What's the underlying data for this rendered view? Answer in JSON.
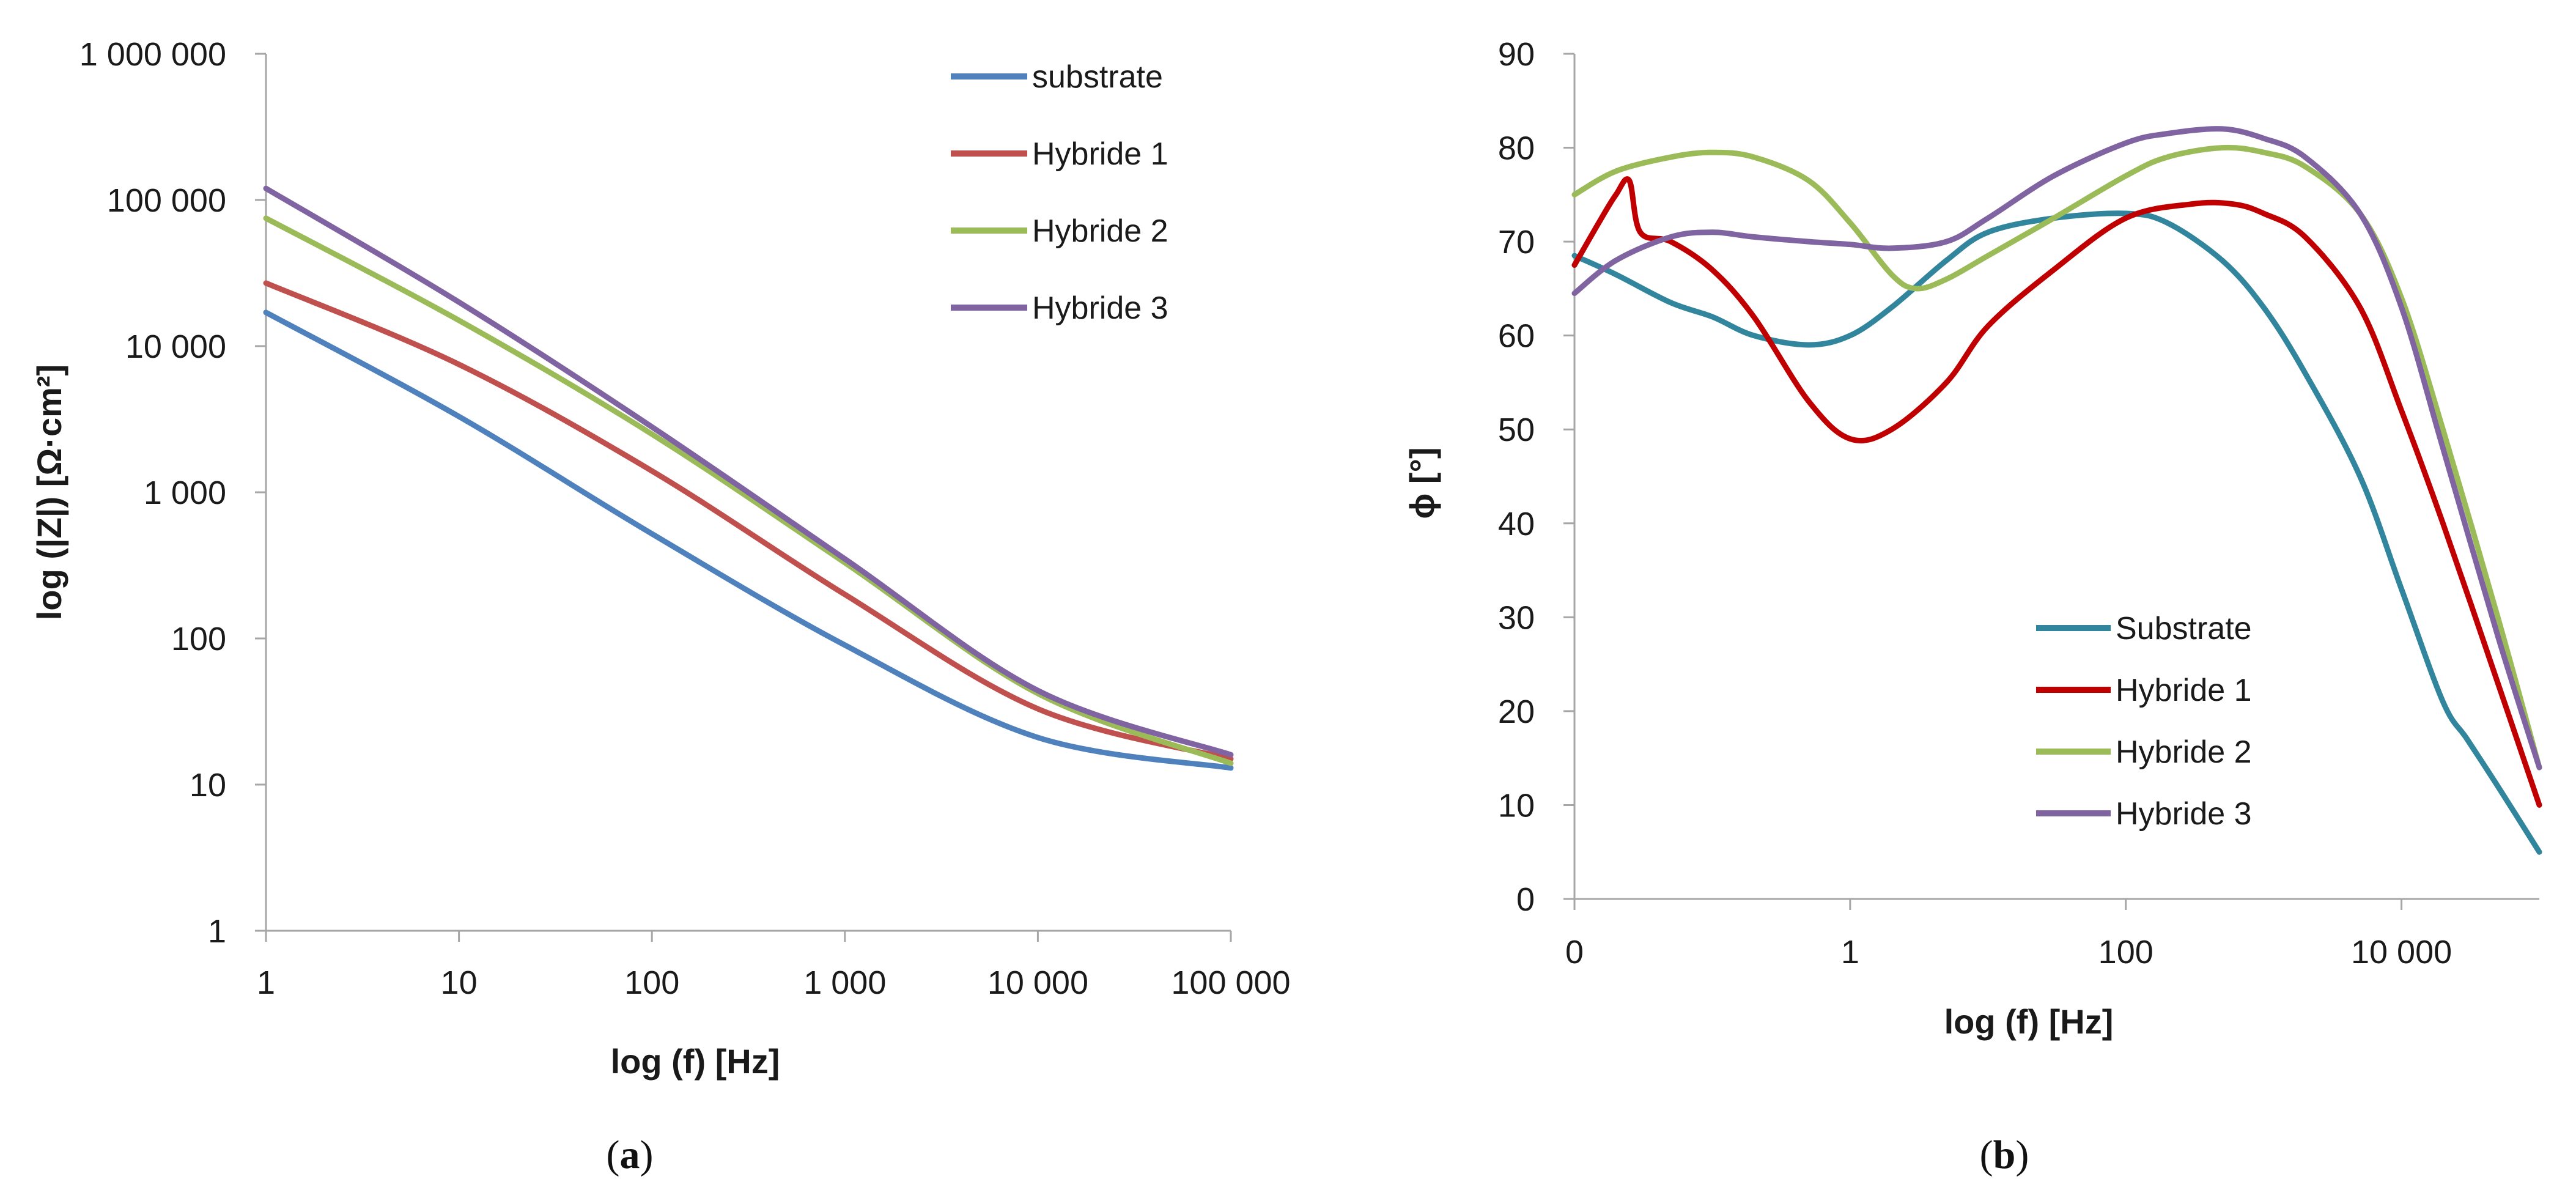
{
  "panels": [
    {
      "label_open": "(",
      "label_letter": "a",
      "label_close": ")"
    },
    {
      "label_open": "(",
      "label_letter": "b",
      "label_close": ")"
    }
  ],
  "chart_data": [
    {
      "type": "line",
      "panel": "a",
      "xlabel": "log (f) [Hz]",
      "ylabel": "log (|Z|) [Ω·cm²]",
      "xscale": "log",
      "yscale": "log",
      "xlim": [
        1,
        100000
      ],
      "ylim": [
        1,
        1000000
      ],
      "x_ticks": [
        1,
        10,
        100,
        1000,
        10000,
        100000
      ],
      "x_tick_labels": [
        "1",
        "10",
        "100",
        "1 000",
        "10 000",
        "100 000"
      ],
      "y_ticks": [
        1,
        10,
        100,
        1000,
        10000,
        100000,
        1000000
      ],
      "y_tick_labels": [
        "1",
        "10",
        "100",
        "1 000",
        "10 000",
        "100 000",
        "1 000 000"
      ],
      "grid": false,
      "legend_position": "top-right",
      "x": [
        1,
        10,
        100,
        1000,
        10000,
        100000
      ],
      "series": [
        {
          "name": "substrate",
          "color": "#4f81bd",
          "values": [
            17000,
            3300,
            520,
            90,
            21,
            13
          ]
        },
        {
          "name": "Hybride 1",
          "color": "#c0504d",
          "values": [
            27000,
            7500,
            1400,
            200,
            33,
            15
          ]
        },
        {
          "name": "Hybride 2",
          "color": "#9bbb59",
          "values": [
            75000,
            15000,
            2500,
            330,
            42,
            14
          ]
        },
        {
          "name": "Hybride 3",
          "color": "#8064a2",
          "values": [
            120000,
            20000,
            2800,
            350,
            44,
            16
          ]
        }
      ]
    },
    {
      "type": "line",
      "panel": "b",
      "xlabel": "log (f) [Hz]",
      "ylabel": "ϕ [°]",
      "xscale": "log",
      "xlim": [
        0.01,
        100000
      ],
      "ylim": [
        0,
        90
      ],
      "x_ticks": [
        0.01,
        1,
        100,
        10000
      ],
      "x_tick_labels": [
        "0",
        "1",
        "100",
        "10 000"
      ],
      "y_ticks": [
        0,
        10,
        20,
        30,
        40,
        50,
        60,
        70,
        80,
        90
      ],
      "y_tick_labels": [
        "0",
        "10",
        "20",
        "30",
        "40",
        "50",
        "60",
        "70",
        "80",
        "90"
      ],
      "grid": false,
      "legend_position": "bottom-right",
      "series": [
        {
          "name": "Substrate",
          "color": "#31859c",
          "x": [
            0.01,
            0.02,
            0.05,
            0.1,
            0.2,
            0.5,
            1,
            2,
            5,
            10,
            30,
            100,
            200,
            500,
            1000,
            2000,
            5000,
            10000,
            20000,
            30000,
            50000,
            100000
          ],
          "values": [
            68.5,
            66.5,
            63.5,
            62,
            60,
            59,
            60,
            63,
            68,
            71,
            72.5,
            73,
            72,
            68,
            63,
            56,
            45,
            33,
            21,
            17,
            12,
            5
          ]
        },
        {
          "name": "Hybride 1",
          "color": "#c00000",
          "x": [
            0.01,
            0.015,
            0.02,
            0.025,
            0.03,
            0.05,
            0.1,
            0.2,
            0.5,
            1,
            2,
            5,
            10,
            30,
            100,
            300,
            600,
            1000,
            2000,
            5000,
            10000,
            20000,
            50000,
            100000
          ],
          "values": [
            67.5,
            72,
            75,
            76.5,
            71,
            70,
            67,
            62,
            53,
            49,
            50,
            55,
            61,
            67,
            72.5,
            74,
            74,
            73,
            70.5,
            63,
            52,
            40,
            23,
            10
          ]
        },
        {
          "name": "Hybride 2",
          "color": "#9bbb59",
          "x": [
            0.01,
            0.02,
            0.05,
            0.1,
            0.2,
            0.5,
            1,
            2,
            3,
            5,
            10,
            30,
            100,
            200,
            500,
            1000,
            2000,
            5000,
            10000,
            20000,
            50000,
            100000
          ],
          "values": [
            75,
            77.5,
            79,
            79.5,
            79,
            76.5,
            72,
            66.5,
            65,
            66,
            68.5,
            72.5,
            77,
            79,
            80,
            79.5,
            78,
            73,
            64,
            50,
            30,
            14
          ]
        },
        {
          "name": "Hybride 3",
          "color": "#8064a2",
          "x": [
            0.01,
            0.02,
            0.05,
            0.1,
            0.2,
            0.5,
            1,
            2,
            5,
            10,
            30,
            100,
            200,
            500,
            1000,
            2000,
            5000,
            10000,
            20000,
            50000,
            100000
          ],
          "values": [
            64.5,
            68,
            70.5,
            71,
            70.5,
            70,
            69.7,
            69.3,
            70,
            72.5,
            77,
            80.5,
            81.5,
            82,
            81,
            79,
            73,
            63,
            48,
            28,
            14
          ]
        }
      ]
    }
  ]
}
